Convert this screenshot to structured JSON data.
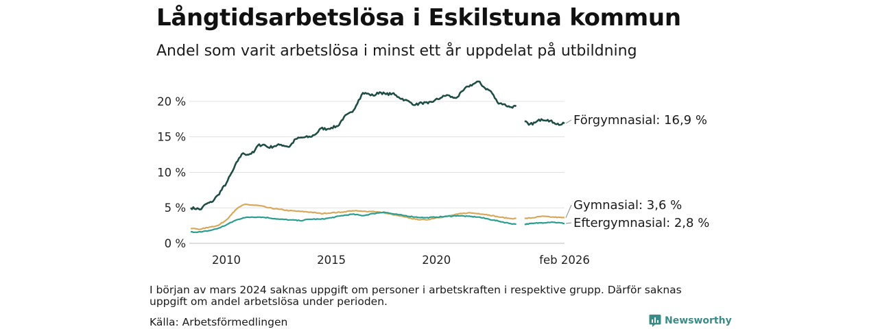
{
  "title": "Långtidsarbetslösa i Eskilstuna kommun",
  "subtitle": "Andel som varit arbetslösa i minst ett år uppdelat på utbildning",
  "note": "I början av mars 2024 saknas uppgift om personer i arbetskraften i respektive grupp. Därför saknas uppgift om andel arbetslösa under perioden.",
  "source": "Källa: Arbetsförmedlingen",
  "brand": "Newsworthy",
  "chart_data": {
    "type": "line",
    "xlim": [
      2008.3,
      2026.1
    ],
    "ylim": [
      0,
      22.5
    ],
    "y_ticks": [
      0,
      5,
      10,
      15,
      20
    ],
    "y_tick_labels": [
      "0 %",
      "5 %",
      "10 %",
      "15 %",
      "20 %"
    ],
    "x_ticks": [
      2010,
      2015,
      2020,
      2026.1
    ],
    "x_tick_labels": [
      "2010",
      "2015",
      "2020",
      "feb 2026"
    ],
    "gap": [
      2023.8,
      2024.2
    ],
    "series": [
      {
        "name": "Förgymnasial",
        "label": "Förgymnasial: 16,9 %",
        "color": "#1f4d45",
        "points": [
          [
            2008.3,
            5.0
          ],
          [
            2008.8,
            4.8
          ],
          [
            2009.0,
            5.5
          ],
          [
            2009.3,
            5.8
          ],
          [
            2009.6,
            6.8
          ],
          [
            2010.0,
            8.5
          ],
          [
            2010.3,
            10.2
          ],
          [
            2010.6,
            12.0
          ],
          [
            2010.8,
            12.7
          ],
          [
            2011.0,
            12.5
          ],
          [
            2011.3,
            12.8
          ],
          [
            2011.5,
            13.8
          ],
          [
            2011.8,
            13.9
          ],
          [
            2012.0,
            13.5
          ],
          [
            2012.3,
            13.7
          ],
          [
            2012.6,
            13.9
          ],
          [
            2013.0,
            13.6
          ],
          [
            2013.3,
            14.7
          ],
          [
            2013.6,
            14.9
          ],
          [
            2014.0,
            15.0
          ],
          [
            2014.3,
            15.5
          ],
          [
            2014.5,
            16.2
          ],
          [
            2014.8,
            16.1
          ],
          [
            2015.0,
            16.3
          ],
          [
            2015.3,
            16.5
          ],
          [
            2015.6,
            17.8
          ],
          [
            2016.0,
            18.5
          ],
          [
            2016.3,
            20.2
          ],
          [
            2016.5,
            21.2
          ],
          [
            2016.8,
            21.0
          ],
          [
            2017.0,
            20.8
          ],
          [
            2017.3,
            21.3
          ],
          [
            2017.6,
            21.0
          ],
          [
            2017.9,
            21.1
          ],
          [
            2018.2,
            20.6
          ],
          [
            2018.5,
            20.2
          ],
          [
            2018.8,
            19.8
          ],
          [
            2019.0,
            19.5
          ],
          [
            2019.3,
            19.8
          ],
          [
            2019.6,
            19.7
          ],
          [
            2019.9,
            20.1
          ],
          [
            2020.2,
            20.5
          ],
          [
            2020.5,
            20.9
          ],
          [
            2020.8,
            20.5
          ],
          [
            2021.0,
            20.6
          ],
          [
            2021.3,
            21.6
          ],
          [
            2021.5,
            22.1
          ],
          [
            2021.8,
            22.5
          ],
          [
            2022.0,
            22.8
          ],
          [
            2022.3,
            21.9
          ],
          [
            2022.6,
            21.4
          ],
          [
            2022.9,
            19.9
          ],
          [
            2023.2,
            19.6
          ],
          [
            2023.5,
            19.2
          ],
          [
            2023.8,
            19.3
          ],
          [
            2024.2,
            17.2
          ],
          [
            2024.4,
            16.7
          ],
          [
            2024.7,
            17.0
          ],
          [
            2025.0,
            17.5
          ],
          [
            2025.3,
            17.4
          ],
          [
            2025.6,
            17.0
          ],
          [
            2025.9,
            16.7
          ],
          [
            2026.1,
            16.9
          ]
        ]
      },
      {
        "name": "Gymnasial",
        "label": "Gymnasial:  3,6 %",
        "color": "#d7a85c",
        "points": [
          [
            2008.3,
            2.1
          ],
          [
            2008.8,
            2.0
          ],
          [
            2009.2,
            2.3
          ],
          [
            2009.6,
            2.5
          ],
          [
            2010.0,
            3.3
          ],
          [
            2010.3,
            4.3
          ],
          [
            2010.6,
            5.1
          ],
          [
            2010.9,
            5.5
          ],
          [
            2011.2,
            5.4
          ],
          [
            2011.6,
            5.3
          ],
          [
            2012.0,
            5.0
          ],
          [
            2012.5,
            4.8
          ],
          [
            2013.0,
            4.6
          ],
          [
            2013.5,
            4.5
          ],
          [
            2014.0,
            4.4
          ],
          [
            2014.5,
            4.2
          ],
          [
            2015.0,
            4.3
          ],
          [
            2015.5,
            4.4
          ],
          [
            2016.0,
            4.6
          ],
          [
            2016.5,
            4.5
          ],
          [
            2017.0,
            4.5
          ],
          [
            2017.5,
            4.3
          ],
          [
            2018.0,
            4.0
          ],
          [
            2018.5,
            3.7
          ],
          [
            2019.0,
            3.4
          ],
          [
            2019.5,
            3.3
          ],
          [
            2020.0,
            3.6
          ],
          [
            2020.5,
            3.8
          ],
          [
            2021.0,
            4.1
          ],
          [
            2021.5,
            4.3
          ],
          [
            2022.0,
            4.2
          ],
          [
            2022.5,
            4.0
          ],
          [
            2023.0,
            3.7
          ],
          [
            2023.5,
            3.5
          ],
          [
            2023.8,
            3.5
          ],
          [
            2024.2,
            3.5
          ],
          [
            2024.6,
            3.6
          ],
          [
            2025.0,
            3.8
          ],
          [
            2025.5,
            3.7
          ],
          [
            2026.1,
            3.6
          ]
        ]
      },
      {
        "name": "Eftergymnasial",
        "label": "Eftergymnasial:  2,8 %",
        "color": "#2a9d8f",
        "points": [
          [
            2008.3,
            1.6
          ],
          [
            2008.8,
            1.6
          ],
          [
            2009.2,
            1.8
          ],
          [
            2009.6,
            2.1
          ],
          [
            2010.0,
            2.6
          ],
          [
            2010.4,
            3.2
          ],
          [
            2010.8,
            3.6
          ],
          [
            2011.2,
            3.7
          ],
          [
            2011.6,
            3.7
          ],
          [
            2012.0,
            3.6
          ],
          [
            2012.5,
            3.4
          ],
          [
            2013.0,
            3.3
          ],
          [
            2013.5,
            3.2
          ],
          [
            2014.0,
            3.4
          ],
          [
            2014.5,
            3.4
          ],
          [
            2015.0,
            3.6
          ],
          [
            2015.5,
            3.9
          ],
          [
            2016.0,
            4.1
          ],
          [
            2016.5,
            3.9
          ],
          [
            2017.0,
            4.2
          ],
          [
            2017.5,
            4.4
          ],
          [
            2018.0,
            4.1
          ],
          [
            2018.5,
            3.9
          ],
          [
            2019.0,
            3.7
          ],
          [
            2019.5,
            3.6
          ],
          [
            2020.0,
            3.7
          ],
          [
            2020.5,
            3.8
          ],
          [
            2021.0,
            3.9
          ],
          [
            2021.5,
            3.8
          ],
          [
            2022.0,
            3.7
          ],
          [
            2022.5,
            3.4
          ],
          [
            2023.0,
            3.1
          ],
          [
            2023.5,
            2.8
          ],
          [
            2023.8,
            2.7
          ],
          [
            2024.2,
            2.7
          ],
          [
            2024.6,
            2.8
          ],
          [
            2025.0,
            2.9
          ],
          [
            2025.5,
            3.0
          ],
          [
            2026.1,
            2.8
          ]
        ]
      }
    ]
  }
}
